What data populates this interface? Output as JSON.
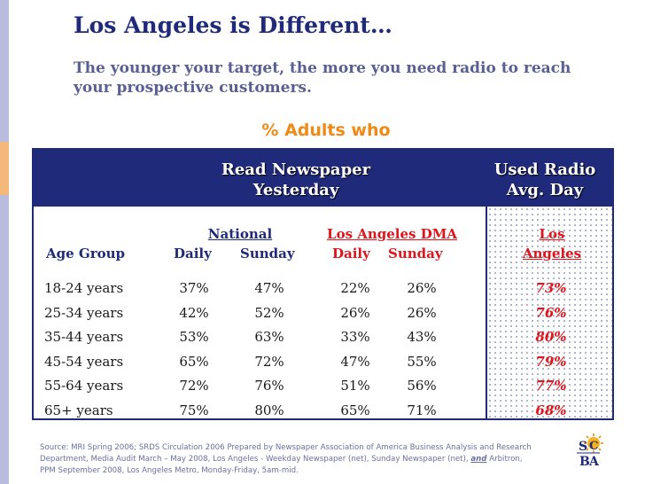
{
  "slide": {
    "title": "Los Angeles is Different…",
    "subtitle": "The younger your target, the more you need radio to reach your prospective customers.",
    "adults_label": "% Adults who"
  },
  "table": {
    "header_newspaper": "Read Newspaper Yesterday",
    "header_radio": "Used Radio Avg. Day",
    "col_national": "National",
    "col_la_dma": "Los Angeles DMA",
    "col_age_group": "Age Group",
    "col_daily": "Daily",
    "col_sunday": "Sunday",
    "col_la_daily": "Daily",
    "col_la_sunday": "Sunday",
    "col_los_angeles": "Los Angeles",
    "rows": [
      {
        "age": "18-24 years",
        "nat_daily": "37%",
        "nat_sunday": "47%",
        "la_daily": "22%",
        "la_sunday": "26%",
        "radio": "73%"
      },
      {
        "age": "25-34 years",
        "nat_daily": "42%",
        "nat_sunday": "52%",
        "la_daily": "26%",
        "la_sunday": "26%",
        "radio": "76%"
      },
      {
        "age": "35-44 years",
        "nat_daily": "53%",
        "nat_sunday": "63%",
        "la_daily": "33%",
        "la_sunday": "43%",
        "radio": "80%"
      },
      {
        "age": "45-54 years",
        "nat_daily": "65%",
        "nat_sunday": "72%",
        "la_daily": "47%",
        "la_sunday": "55%",
        "radio": "79%"
      },
      {
        "age": "55-64 years",
        "nat_daily": "72%",
        "nat_sunday": "76%",
        "la_daily": "51%",
        "la_sunday": "56%",
        "radio": "77%"
      },
      {
        "age": "65+ years",
        "nat_daily": "75%",
        "nat_sunday": "80%",
        "la_daily": "65%",
        "la_sunday": "71%",
        "radio": "68%"
      }
    ]
  },
  "source": {
    "part1": "Source: MRI Spring 2006; SRDS Circulation 2006 Prepared by Newspaper Association of America Business Analysis and Research Department, Media Audit March – May 2008, Los Angeles - Weekday Newspaper (net), Sunday Newspaper (net),",
    "and_word": "and",
    "part2": "Arbitron, PPM September 2008, Los Angeles Metro, Monday-Friday, 5am-mid."
  },
  "logo": {
    "text_s": "S",
    "text_c": "C",
    "text_b": "B",
    "text_a": "A"
  },
  "colors": {
    "navy": "#1f2a7a",
    "red": "#e0141b",
    "orange": "#f08a17"
  }
}
